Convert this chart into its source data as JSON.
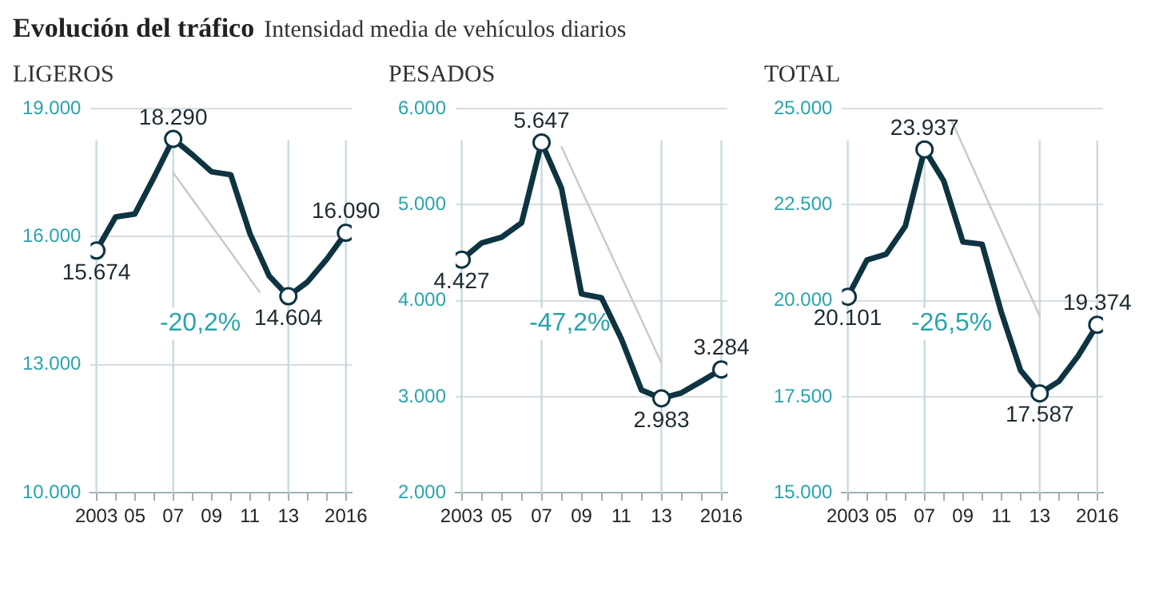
{
  "chart_data": [
    {
      "type": "other",
      "title": "Evolución del tráfico",
      "subtitle": "Intensidad media de vehículos diarios"
    },
    {
      "type": "line",
      "title": "LIGEROS",
      "grid": "y",
      "xlim": [
        2002.7,
        2016.3
      ],
      "ylim": [
        10000,
        19000
      ],
      "yticks": [
        {
          "value": 10000,
          "label": "10.000"
        },
        {
          "value": 13000,
          "label": "13.000"
        },
        {
          "value": 16000,
          "label": "16.000"
        },
        {
          "value": 19000,
          "label": "19.000"
        }
      ],
      "xticks": [
        {
          "value": 2003,
          "label": "2003"
        },
        {
          "value": 2004,
          "label": null
        },
        {
          "value": 2005,
          "label": "05"
        },
        {
          "value": 2006,
          "label": null
        },
        {
          "value": 2007,
          "label": "07"
        },
        {
          "value": 2008,
          "label": null
        },
        {
          "value": 2009,
          "label": "09"
        },
        {
          "value": 2010,
          "label": null
        },
        {
          "value": 2011,
          "label": "11"
        },
        {
          "value": 2012,
          "label": null
        },
        {
          "value": 2013,
          "label": "13"
        },
        {
          "value": 2014,
          "label": null
        },
        {
          "value": 2015,
          "label": null
        },
        {
          "value": 2016,
          "label": "2016"
        }
      ],
      "x": [
        2003,
        2004,
        2005,
        2006,
        2007,
        2008,
        2009,
        2010,
        2011,
        2012,
        2013,
        2014,
        2015,
        2016
      ],
      "series": [
        {
          "color": "#0e3442",
          "values": [
            15674,
            16460,
            16530,
            17390,
            18290,
            17920,
            17520,
            17450,
            16070,
            15080,
            14604,
            14940,
            15470,
            16090
          ],
          "value_labels": [
            "15.674",
            null,
            null,
            null,
            "18.290",
            null,
            null,
            null,
            null,
            null,
            "14.604",
            null,
            null,
            "16.090"
          ]
        },
        {
          "color": "#c8c8c8",
          "x": [
            2007,
            2011.5
          ],
          "values": [
            17500,
            14700
          ]
        }
      ],
      "ref_lines": [
        {
          "axis": "x",
          "value": 2003,
          "color": "#c9dbe0"
        },
        {
          "axis": "x",
          "value": 2007,
          "color": "#c9dbe0"
        },
        {
          "axis": "x",
          "value": 2013,
          "color": "#c9dbe0"
        },
        {
          "axis": "x",
          "value": 2016,
          "color": "#c9dbe0"
        }
      ],
      "annotations": [
        "-20,2%"
      ]
    },
    {
      "type": "line",
      "title": "PESADOS",
      "grid": "y",
      "xlim": [
        2002.7,
        2016.3
      ],
      "ylim": [
        2000,
        6000
      ],
      "yticks": [
        {
          "value": 2000,
          "label": "2.000"
        },
        {
          "value": 3000,
          "label": "3.000"
        },
        {
          "value": 4000,
          "label": "4.000"
        },
        {
          "value": 5000,
          "label": "5.000"
        },
        {
          "value": 6000,
          "label": "6.000"
        }
      ],
      "xticks": [
        {
          "value": 2003,
          "label": "2003"
        },
        {
          "value": 2004,
          "label": null
        },
        {
          "value": 2005,
          "label": "05"
        },
        {
          "value": 2006,
          "label": null
        },
        {
          "value": 2007,
          "label": "07"
        },
        {
          "value": 2008,
          "label": null
        },
        {
          "value": 2009,
          "label": "09"
        },
        {
          "value": 2010,
          "label": null
        },
        {
          "value": 2011,
          "label": "11"
        },
        {
          "value": 2012,
          "label": null
        },
        {
          "value": 2013,
          "label": "13"
        },
        {
          "value": 2014,
          "label": null
        },
        {
          "value": 2015,
          "label": null
        },
        {
          "value": 2016,
          "label": "2016"
        }
      ],
      "x": [
        2003,
        2004,
        2005,
        2006,
        2007,
        2008,
        2009,
        2010,
        2011,
        2012,
        2013,
        2014,
        2015,
        2016
      ],
      "series": [
        {
          "color": "#0e3442",
          "values": [
            4427,
            4600,
            4660,
            4810,
            5647,
            5170,
            4070,
            4030,
            3600,
            3070,
            2983,
            3040,
            3160,
            3284
          ],
          "value_labels": [
            "4.427",
            null,
            null,
            null,
            "5.647",
            null,
            null,
            null,
            null,
            null,
            "2.983",
            null,
            null,
            "3.284"
          ]
        },
        {
          "color": "#c8c8c8",
          "x": [
            2008,
            2013
          ],
          "values": [
            5600,
            3350
          ]
        }
      ],
      "ref_lines": [
        {
          "axis": "x",
          "value": 2003,
          "color": "#c9dbe0"
        },
        {
          "axis": "x",
          "value": 2007,
          "color": "#c9dbe0"
        },
        {
          "axis": "x",
          "value": 2013,
          "color": "#c9dbe0"
        },
        {
          "axis": "x",
          "value": 2016,
          "color": "#c9dbe0"
        }
      ],
      "annotations": [
        "-47,2%"
      ]
    },
    {
      "type": "line",
      "title": "TOTAL",
      "grid": "y",
      "xlim": [
        2002.7,
        2016.3
      ],
      "ylim": [
        15000,
        25000
      ],
      "yticks": [
        {
          "value": 15000,
          "label": "15.000"
        },
        {
          "value": 17500,
          "label": "17.500"
        },
        {
          "value": 20000,
          "label": "20.000"
        },
        {
          "value": 22500,
          "label": "22.500"
        },
        {
          "value": 25000,
          "label": "25.000"
        }
      ],
      "xticks": [
        {
          "value": 2003,
          "label": "2003"
        },
        {
          "value": 2004,
          "label": null
        },
        {
          "value": 2005,
          "label": "05"
        },
        {
          "value": 2006,
          "label": null
        },
        {
          "value": 2007,
          "label": "07"
        },
        {
          "value": 2008,
          "label": null
        },
        {
          "value": 2009,
          "label": "09"
        },
        {
          "value": 2010,
          "label": null
        },
        {
          "value": 2011,
          "label": "11"
        },
        {
          "value": 2012,
          "label": null
        },
        {
          "value": 2013,
          "label": "13"
        },
        {
          "value": 2014,
          "label": null
        },
        {
          "value": 2015,
          "label": null
        },
        {
          "value": 2016,
          "label": "2016"
        }
      ],
      "x": [
        2003,
        2004,
        2005,
        2006,
        2007,
        2008,
        2009,
        2010,
        2011,
        2012,
        2013,
        2014,
        2015,
        2016
      ],
      "series": [
        {
          "color": "#0e3442",
          "values": [
            20101,
            21060,
            21210,
            21940,
            23937,
            23120,
            21530,
            21470,
            19700,
            18190,
            17587,
            17900,
            18560,
            19374
          ],
          "value_labels": [
            "20.101",
            null,
            null,
            null,
            "23.937",
            null,
            null,
            null,
            null,
            null,
            "17.587",
            null,
            null,
            "19.374"
          ]
        },
        {
          "color": "#c8c8c8",
          "x": [
            2008.4,
            2013
          ],
          "values": [
            24700,
            19600
          ]
        }
      ],
      "ref_lines": [
        {
          "axis": "x",
          "value": 2003,
          "color": "#c9dbe0"
        },
        {
          "axis": "x",
          "value": 2007,
          "color": "#c9dbe0"
        },
        {
          "axis": "x",
          "value": 2013,
          "color": "#c9dbe0"
        },
        {
          "axis": "x",
          "value": 2016,
          "color": "#c9dbe0"
        }
      ],
      "annotations": [
        "-26,5%"
      ]
    }
  ]
}
